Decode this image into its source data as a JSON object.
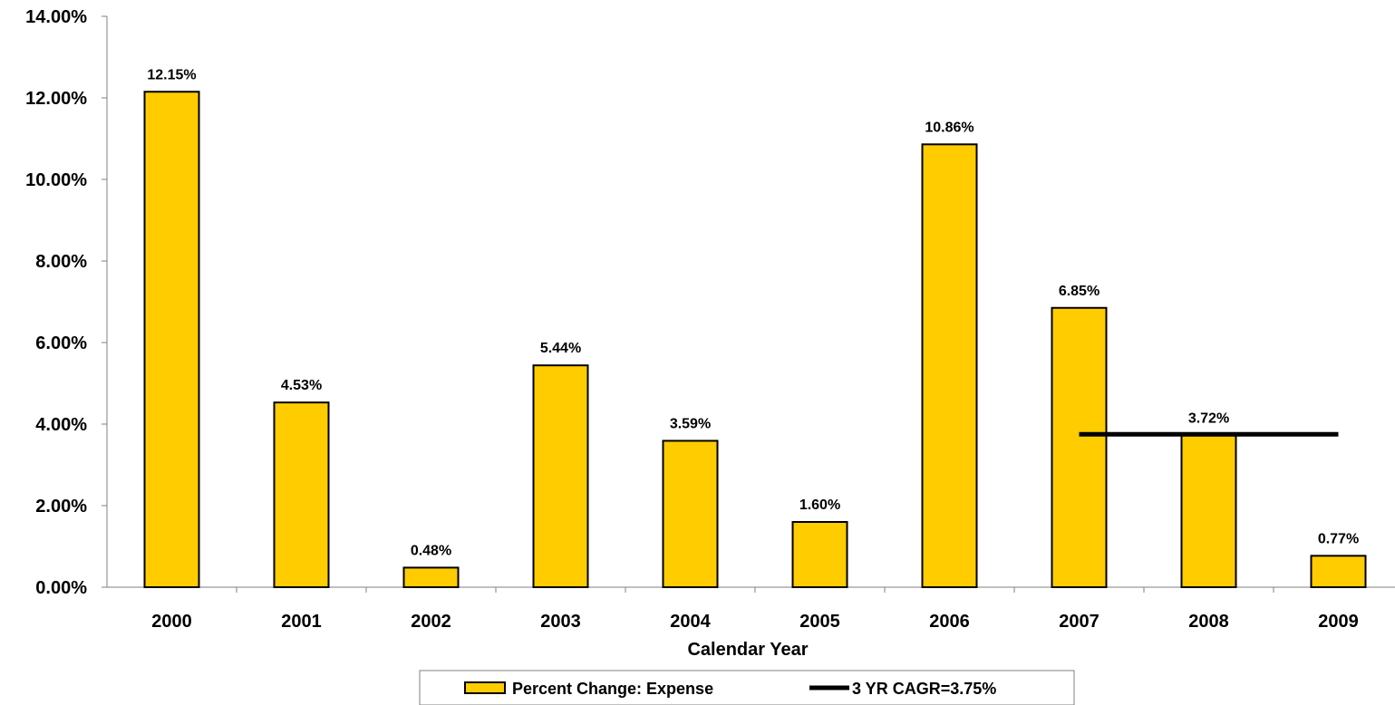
{
  "chart_data": {
    "type": "bar",
    "title": "",
    "xlabel": "Calendar Year",
    "ylabel": "",
    "categories": [
      "2000",
      "2001",
      "2002",
      "2003",
      "2004",
      "2005",
      "2006",
      "2007",
      "2008",
      "2009"
    ],
    "series": [
      {
        "name": "Percent Change: Expense",
        "type": "bar",
        "color": "#FFCC00",
        "values": [
          12.15,
          4.53,
          0.48,
          5.44,
          3.59,
          1.6,
          10.86,
          6.85,
          3.72,
          0.77
        ],
        "labels": [
          "12.15%",
          "4.53%",
          "0.48%",
          "5.44%",
          "3.59%",
          "1.60%",
          "10.86%",
          "6.85%",
          "3.72%",
          "0.77%"
        ]
      },
      {
        "name": "3 YR CAGR=3.75%",
        "type": "line",
        "color": "#000000",
        "x_range": [
          "2007",
          "2009"
        ],
        "value": 3.75
      }
    ],
    "ylim": [
      0,
      14
    ],
    "yticks": [
      0,
      2,
      4,
      6,
      8,
      10,
      12,
      14
    ],
    "ytick_labels": [
      "0.00%",
      "2.00%",
      "4.00%",
      "6.00%",
      "8.00%",
      "10.00%",
      "12.00%",
      "14.00%"
    ],
    "grid": false,
    "legend_position": "bottom"
  }
}
